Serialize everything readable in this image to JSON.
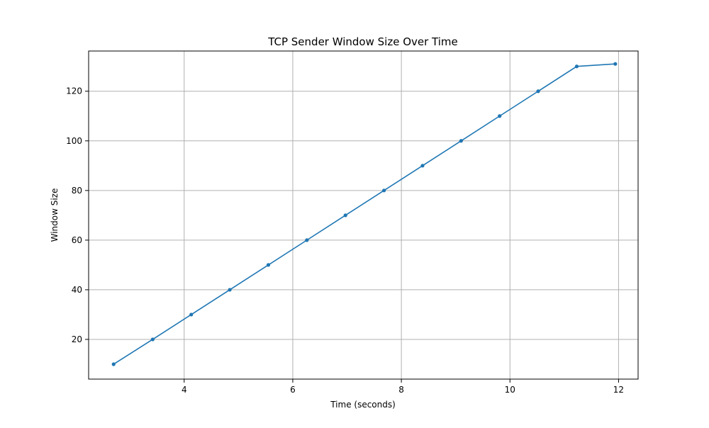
{
  "chart_data": {
    "type": "line",
    "title": "TCP Sender Window Size Over Time",
    "xlabel": "Time (seconds)",
    "ylabel": "Window Size",
    "xlim": [
      2.24,
      12.36
    ],
    "ylim": [
      4,
      136.2
    ],
    "x_ticks": [
      4,
      6,
      8,
      10,
      12
    ],
    "y_ticks": [
      20,
      40,
      60,
      80,
      100,
      120
    ],
    "grid": true,
    "legend": "none",
    "series": [
      {
        "color": "#1f77b4",
        "marker": "circle",
        "x": [
          2.7,
          3.42,
          4.13,
          4.84,
          5.55,
          6.26,
          6.97,
          7.68,
          8.39,
          9.1,
          9.81,
          10.52,
          11.23,
          11.94
        ],
        "y": [
          10,
          20,
          30,
          40,
          50,
          60,
          70,
          80,
          90,
          100,
          110,
          120,
          130,
          131
        ]
      }
    ]
  }
}
